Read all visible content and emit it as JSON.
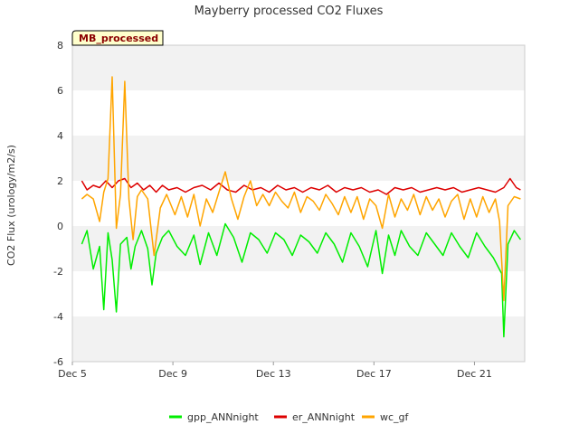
{
  "chart_data": {
    "type": "line",
    "title": "Mayberry processed CO2 Fluxes",
    "ylabel": "CO2 Flux (urology/m2/s)",
    "xlabel": "",
    "badge": "MB_processed",
    "ylim": [
      -6,
      8
    ],
    "yticks": [
      -6,
      -4,
      -2,
      0,
      2,
      4,
      6,
      8
    ],
    "xlim": [
      "2023-12-05",
      "2023-12-23"
    ],
    "xticks": [
      {
        "date": "2023-12-05",
        "label": "Dec 5"
      },
      {
        "date": "2023-12-09",
        "label": "Dec 9"
      },
      {
        "date": "2023-12-13",
        "label": "Dec 13"
      },
      {
        "date": "2023-12-17",
        "label": "Dec 17"
      },
      {
        "date": "2023-12-21",
        "label": "Dec 21"
      }
    ],
    "grid": "alternating horizontal bands",
    "legend_position": "bottom",
    "series": [
      {
        "name": "gpp_ANNnight",
        "color": "#00ee00",
        "points": [
          [
            "2023-12-05T09:00",
            -0.8
          ],
          [
            "2023-12-05T14:00",
            -0.2
          ],
          [
            "2023-12-05T20:00",
            -1.9
          ],
          [
            "2023-12-06T02:00",
            -0.9
          ],
          [
            "2023-12-06T06:00",
            -3.7
          ],
          [
            "2023-12-06T10:00",
            -0.3
          ],
          [
            "2023-12-06T14:00",
            -1.5
          ],
          [
            "2023-12-06T18:00",
            -3.8
          ],
          [
            "2023-12-06T22:00",
            -0.8
          ],
          [
            "2023-12-07T04:00",
            -0.5
          ],
          [
            "2023-12-07T08:00",
            -1.9
          ],
          [
            "2023-12-07T12:00",
            -0.9
          ],
          [
            "2023-12-07T18:00",
            -0.2
          ],
          [
            "2023-12-08T00:00",
            -1.0
          ],
          [
            "2023-12-08T04:00",
            -2.6
          ],
          [
            "2023-12-08T08:00",
            -1.2
          ],
          [
            "2023-12-08T14:00",
            -0.5
          ],
          [
            "2023-12-08T20:00",
            -0.2
          ],
          [
            "2023-12-09T04:00",
            -0.9
          ],
          [
            "2023-12-09T12:00",
            -1.3
          ],
          [
            "2023-12-09T20:00",
            -0.4
          ],
          [
            "2023-12-10T02:00",
            -1.7
          ],
          [
            "2023-12-10T10:00",
            -0.3
          ],
          [
            "2023-12-10T18:00",
            -1.3
          ],
          [
            "2023-12-11T02:00",
            0.1
          ],
          [
            "2023-12-11T10:00",
            -0.5
          ],
          [
            "2023-12-11T18:00",
            -1.6
          ],
          [
            "2023-12-12T02:00",
            -0.3
          ],
          [
            "2023-12-12T10:00",
            -0.6
          ],
          [
            "2023-12-12T18:00",
            -1.2
          ],
          [
            "2023-12-13T02:00",
            -0.3
          ],
          [
            "2023-12-13T10:00",
            -0.6
          ],
          [
            "2023-12-13T18:00",
            -1.3
          ],
          [
            "2023-12-14T02:00",
            -0.4
          ],
          [
            "2023-12-14T10:00",
            -0.7
          ],
          [
            "2023-12-14T18:00",
            -1.2
          ],
          [
            "2023-12-15T02:00",
            -0.3
          ],
          [
            "2023-12-15T10:00",
            -0.8
          ],
          [
            "2023-12-15T18:00",
            -1.6
          ],
          [
            "2023-12-16T02:00",
            -0.3
          ],
          [
            "2023-12-16T10:00",
            -0.9
          ],
          [
            "2023-12-16T18:00",
            -1.8
          ],
          [
            "2023-12-17T02:00",
            -0.2
          ],
          [
            "2023-12-17T08:00",
            -2.1
          ],
          [
            "2023-12-17T14:00",
            -0.4
          ],
          [
            "2023-12-17T20:00",
            -1.3
          ],
          [
            "2023-12-18T02:00",
            -0.2
          ],
          [
            "2023-12-18T10:00",
            -0.9
          ],
          [
            "2023-12-18T18:00",
            -1.3
          ],
          [
            "2023-12-19T02:00",
            -0.3
          ],
          [
            "2023-12-19T10:00",
            -0.8
          ],
          [
            "2023-12-19T18:00",
            -1.3
          ],
          [
            "2023-12-20T02:00",
            -0.3
          ],
          [
            "2023-12-20T10:00",
            -0.9
          ],
          [
            "2023-12-20T18:00",
            -1.4
          ],
          [
            "2023-12-21T02:00",
            -0.3
          ],
          [
            "2023-12-21T10:00",
            -0.9
          ],
          [
            "2023-12-21T18:00",
            -1.4
          ],
          [
            "2023-12-22T02:00",
            -2.1
          ],
          [
            "2023-12-22T04:00",
            -4.9
          ],
          [
            "2023-12-22T08:00",
            -0.8
          ],
          [
            "2023-12-22T14:00",
            -0.2
          ],
          [
            "2023-12-22T20:00",
            -0.6
          ]
        ]
      },
      {
        "name": "er_ANNnight",
        "color": "#dd0000",
        "points": [
          [
            "2023-12-05T09:00",
            2.0
          ],
          [
            "2023-12-05T14:00",
            1.6
          ],
          [
            "2023-12-05T20:00",
            1.8
          ],
          [
            "2023-12-06T02:00",
            1.7
          ],
          [
            "2023-12-06T08:00",
            2.0
          ],
          [
            "2023-12-06T14:00",
            1.7
          ],
          [
            "2023-12-06T20:00",
            2.0
          ],
          [
            "2023-12-07T02:00",
            2.1
          ],
          [
            "2023-12-07T08:00",
            1.7
          ],
          [
            "2023-12-07T14:00",
            1.9
          ],
          [
            "2023-12-07T20:00",
            1.6
          ],
          [
            "2023-12-08T02:00",
            1.8
          ],
          [
            "2023-12-08T08:00",
            1.5
          ],
          [
            "2023-12-08T14:00",
            1.8
          ],
          [
            "2023-12-08T20:00",
            1.6
          ],
          [
            "2023-12-09T04:00",
            1.7
          ],
          [
            "2023-12-09T12:00",
            1.5
          ],
          [
            "2023-12-09T20:00",
            1.7
          ],
          [
            "2023-12-10T04:00",
            1.8
          ],
          [
            "2023-12-10T12:00",
            1.6
          ],
          [
            "2023-12-10T20:00",
            1.9
          ],
          [
            "2023-12-11T04:00",
            1.6
          ],
          [
            "2023-12-11T12:00",
            1.5
          ],
          [
            "2023-12-11T20:00",
            1.8
          ],
          [
            "2023-12-12T04:00",
            1.6
          ],
          [
            "2023-12-12T12:00",
            1.7
          ],
          [
            "2023-12-12T20:00",
            1.5
          ],
          [
            "2023-12-13T04:00",
            1.8
          ],
          [
            "2023-12-13T12:00",
            1.6
          ],
          [
            "2023-12-13T20:00",
            1.7
          ],
          [
            "2023-12-14T04:00",
            1.5
          ],
          [
            "2023-12-14T12:00",
            1.7
          ],
          [
            "2023-12-14T20:00",
            1.6
          ],
          [
            "2023-12-15T04:00",
            1.8
          ],
          [
            "2023-12-15T12:00",
            1.5
          ],
          [
            "2023-12-15T20:00",
            1.7
          ],
          [
            "2023-12-16T04:00",
            1.6
          ],
          [
            "2023-12-16T12:00",
            1.7
          ],
          [
            "2023-12-16T20:00",
            1.5
          ],
          [
            "2023-12-17T04:00",
            1.6
          ],
          [
            "2023-12-17T12:00",
            1.4
          ],
          [
            "2023-12-17T20:00",
            1.7
          ],
          [
            "2023-12-18T04:00",
            1.6
          ],
          [
            "2023-12-18T12:00",
            1.7
          ],
          [
            "2023-12-18T20:00",
            1.5
          ],
          [
            "2023-12-19T04:00",
            1.6
          ],
          [
            "2023-12-19T12:00",
            1.7
          ],
          [
            "2023-12-19T20:00",
            1.6
          ],
          [
            "2023-12-20T04:00",
            1.7
          ],
          [
            "2023-12-20T12:00",
            1.5
          ],
          [
            "2023-12-20T20:00",
            1.6
          ],
          [
            "2023-12-21T04:00",
            1.7
          ],
          [
            "2023-12-21T12:00",
            1.6
          ],
          [
            "2023-12-21T20:00",
            1.5
          ],
          [
            "2023-12-22T04:00",
            1.7
          ],
          [
            "2023-12-22T10:00",
            2.1
          ],
          [
            "2023-12-22T16:00",
            1.7
          ],
          [
            "2023-12-22T20:00",
            1.6
          ]
        ]
      },
      {
        "name": "wc_gf",
        "color": "#ffa500",
        "points": [
          [
            "2023-12-05T09:00",
            1.2
          ],
          [
            "2023-12-05T14:00",
            1.4
          ],
          [
            "2023-12-05T20:00",
            1.2
          ],
          [
            "2023-12-06T02:00",
            0.2
          ],
          [
            "2023-12-06T06:00",
            1.5
          ],
          [
            "2023-12-06T10:00",
            2.1
          ],
          [
            "2023-12-06T14:00",
            6.6
          ],
          [
            "2023-12-06T18:00",
            -0.1
          ],
          [
            "2023-12-06T22:00",
            1.4
          ],
          [
            "2023-12-07T02:00",
            6.4
          ],
          [
            "2023-12-07T06:00",
            1.2
          ],
          [
            "2023-12-07T10:00",
            -0.6
          ],
          [
            "2023-12-07T14:00",
            1.3
          ],
          [
            "2023-12-07T18:00",
            1.6
          ],
          [
            "2023-12-08T00:00",
            1.2
          ],
          [
            "2023-12-08T06:00",
            -1.3
          ],
          [
            "2023-12-08T12:00",
            0.8
          ],
          [
            "2023-12-08T18:00",
            1.4
          ],
          [
            "2023-12-09T02:00",
            0.5
          ],
          [
            "2023-12-09T08:00",
            1.3
          ],
          [
            "2023-12-09T14:00",
            0.4
          ],
          [
            "2023-12-09T20:00",
            1.4
          ],
          [
            "2023-12-10T02:00",
            0.0
          ],
          [
            "2023-12-10T08:00",
            1.2
          ],
          [
            "2023-12-10T14:00",
            0.6
          ],
          [
            "2023-12-10T20:00",
            1.5
          ],
          [
            "2023-12-11T02:00",
            2.4
          ],
          [
            "2023-12-11T08:00",
            1.2
          ],
          [
            "2023-12-11T14:00",
            0.3
          ],
          [
            "2023-12-11T20:00",
            1.3
          ],
          [
            "2023-12-12T02:00",
            2.0
          ],
          [
            "2023-12-12T08:00",
            0.9
          ],
          [
            "2023-12-12T14:00",
            1.4
          ],
          [
            "2023-12-12T20:00",
            0.9
          ],
          [
            "2023-12-13T02:00",
            1.5
          ],
          [
            "2023-12-13T08:00",
            1.1
          ],
          [
            "2023-12-13T14:00",
            0.8
          ],
          [
            "2023-12-13T20:00",
            1.5
          ],
          [
            "2023-12-14T02:00",
            0.6
          ],
          [
            "2023-12-14T08:00",
            1.3
          ],
          [
            "2023-12-14T14:00",
            1.1
          ],
          [
            "2023-12-14T20:00",
            0.7
          ],
          [
            "2023-12-15T02:00",
            1.4
          ],
          [
            "2023-12-15T08:00",
            1.0
          ],
          [
            "2023-12-15T14:00",
            0.5
          ],
          [
            "2023-12-15T20:00",
            1.3
          ],
          [
            "2023-12-16T02:00",
            0.6
          ],
          [
            "2023-12-16T08:00",
            1.3
          ],
          [
            "2023-12-16T14:00",
            0.3
          ],
          [
            "2023-12-16T20:00",
            1.2
          ],
          [
            "2023-12-17T02:00",
            0.9
          ],
          [
            "2023-12-17T08:00",
            -0.1
          ],
          [
            "2023-12-17T14:00",
            1.4
          ],
          [
            "2023-12-17T20:00",
            0.4
          ],
          [
            "2023-12-18T02:00",
            1.2
          ],
          [
            "2023-12-18T08:00",
            0.7
          ],
          [
            "2023-12-18T14:00",
            1.4
          ],
          [
            "2023-12-18T20:00",
            0.5
          ],
          [
            "2023-12-19T02:00",
            1.3
          ],
          [
            "2023-12-19T08:00",
            0.7
          ],
          [
            "2023-12-19T14:00",
            1.2
          ],
          [
            "2023-12-19T20:00",
            0.4
          ],
          [
            "2023-12-20T02:00",
            1.1
          ],
          [
            "2023-12-20T08:00",
            1.4
          ],
          [
            "2023-12-20T14:00",
            0.3
          ],
          [
            "2023-12-20T20:00",
            1.2
          ],
          [
            "2023-12-21T02:00",
            0.4
          ],
          [
            "2023-12-21T08:00",
            1.3
          ],
          [
            "2023-12-21T14:00",
            0.6
          ],
          [
            "2023-12-21T20:00",
            1.2
          ],
          [
            "2023-12-22T00:00",
            0.2
          ],
          [
            "2023-12-22T04:00",
            -3.3
          ],
          [
            "2023-12-22T08:00",
            0.9
          ],
          [
            "2023-12-22T14:00",
            1.3
          ],
          [
            "2023-12-22T20:00",
            1.2
          ]
        ]
      }
    ]
  }
}
